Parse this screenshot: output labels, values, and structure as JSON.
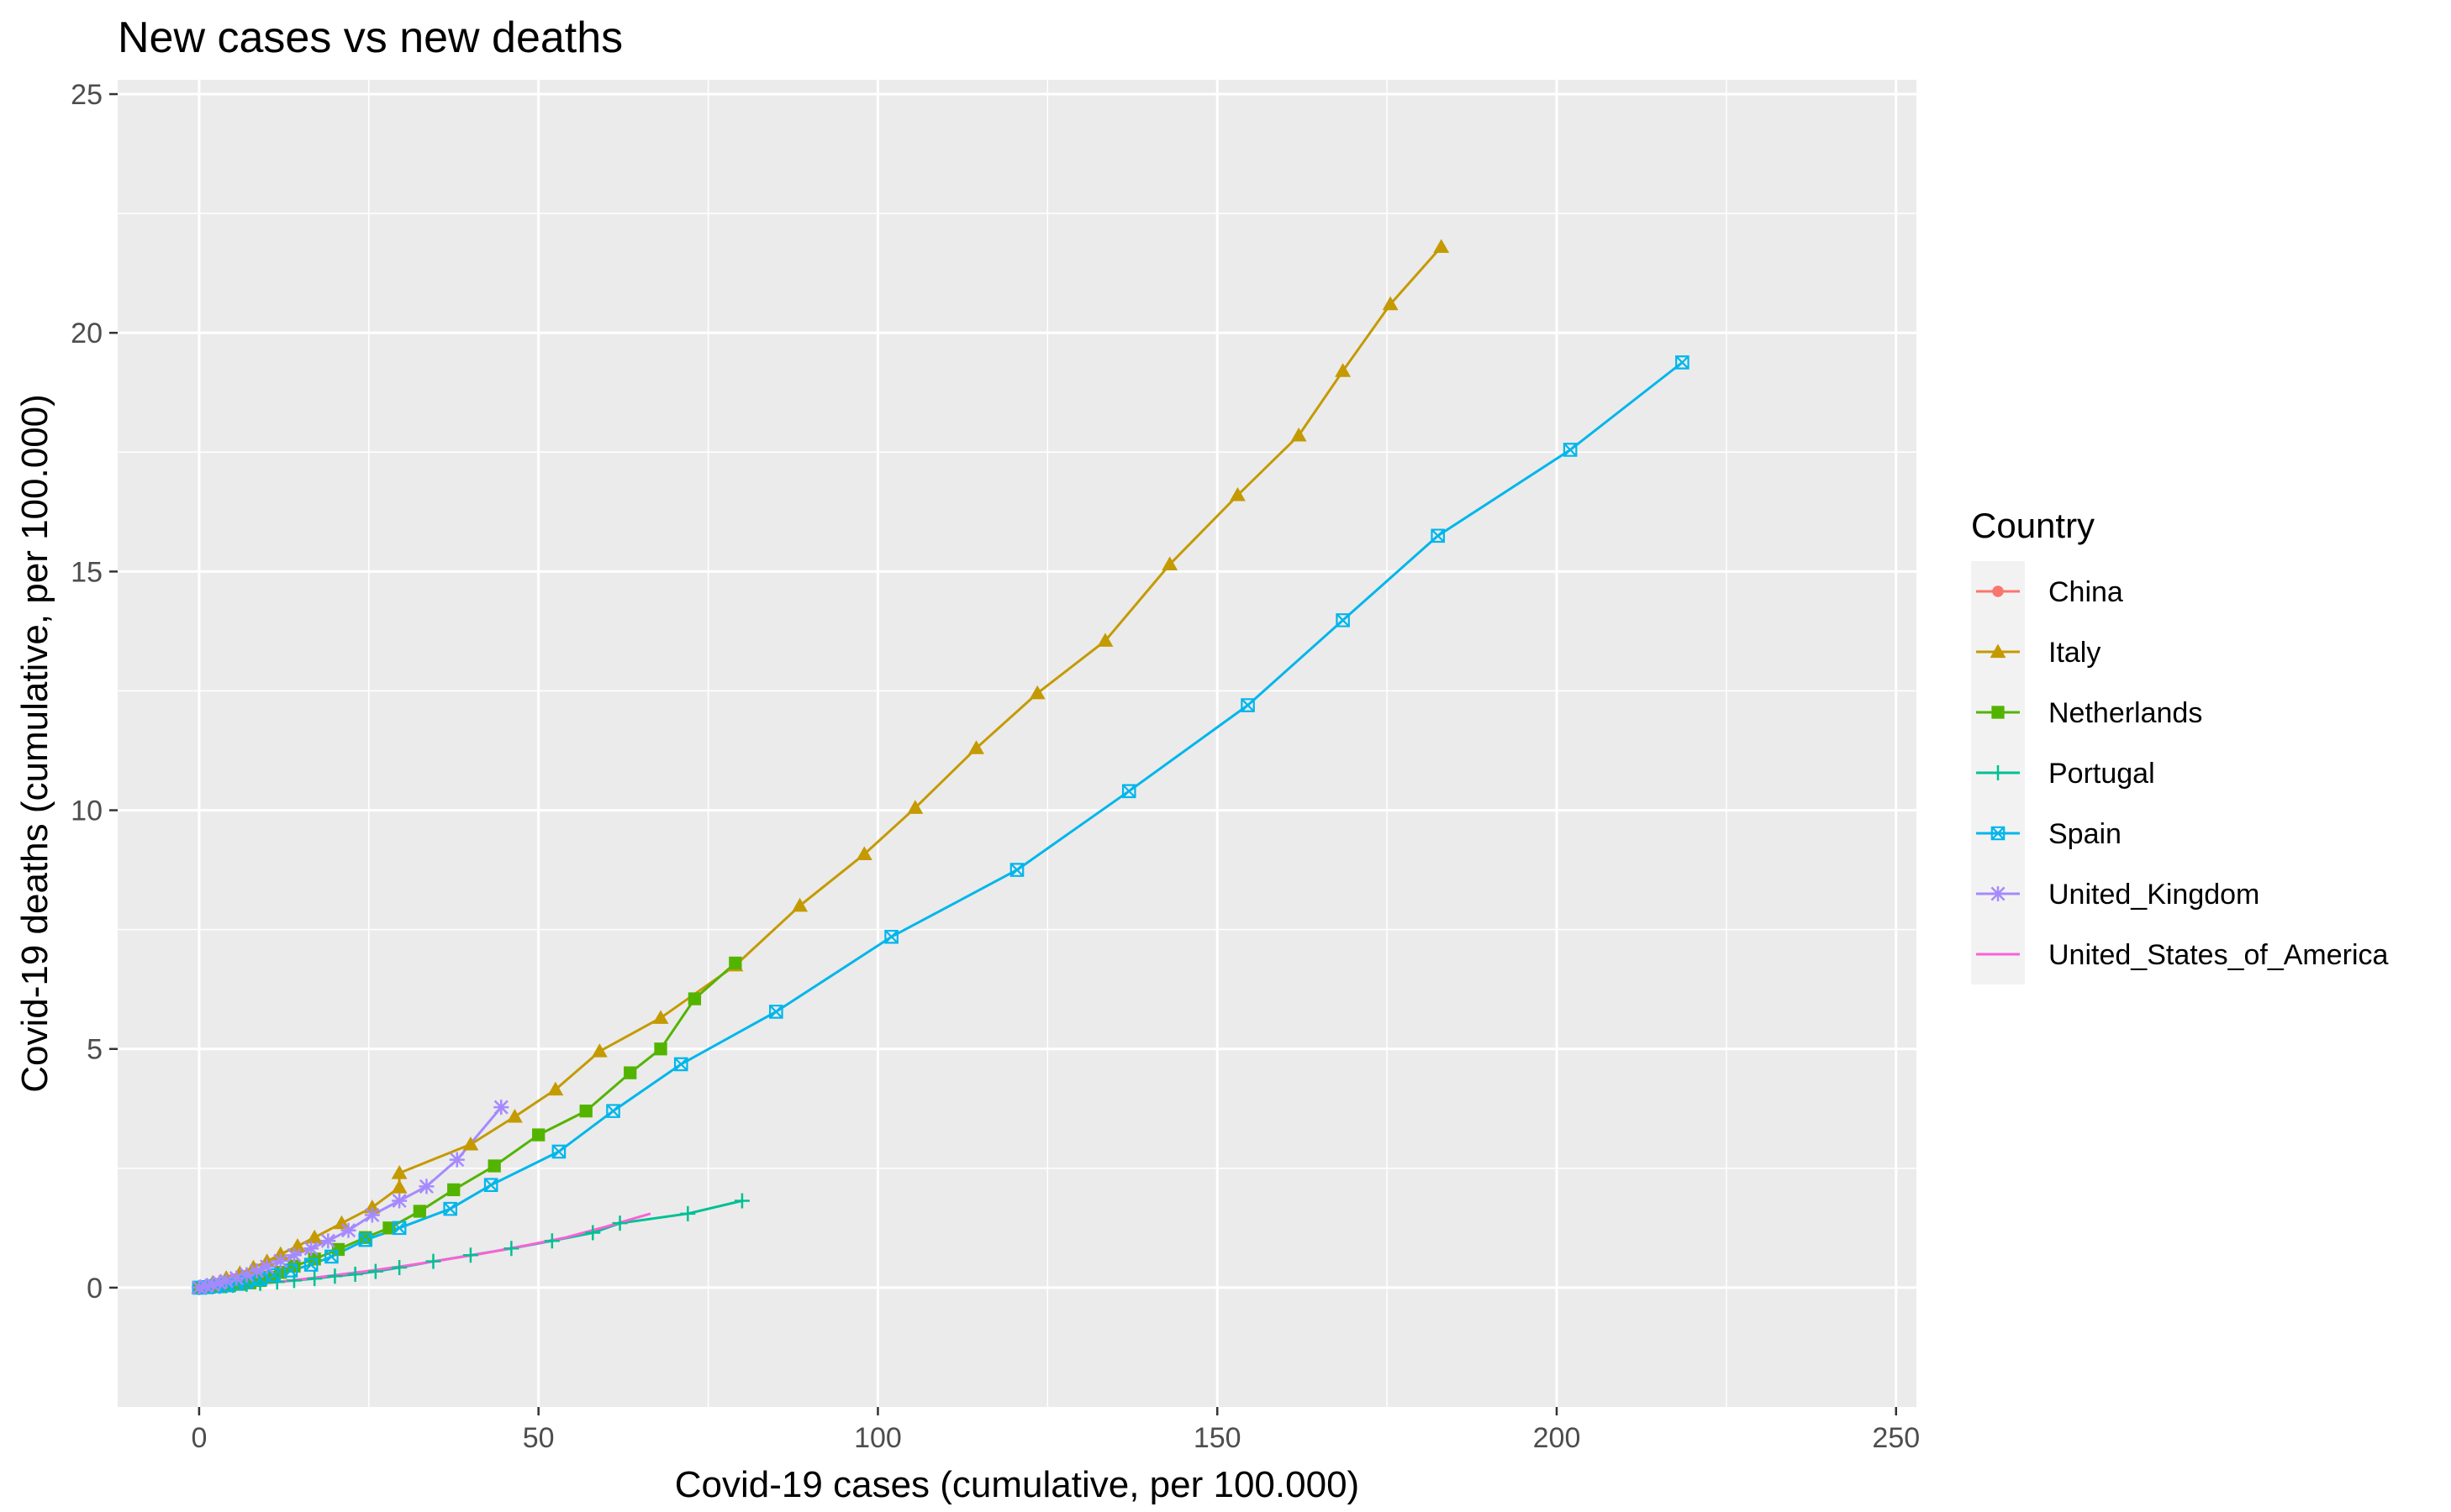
{
  "chart_data": {
    "type": "line",
    "title": "New cases vs new deaths",
    "xlabel": "Covid-19 cases (cumulative, per 100.000)",
    "ylabel": "Covid-19 deaths  (cumulative, per 100.000)",
    "xlim": [
      -12,
      253
    ],
    "ylim": [
      -2.5,
      25.3
    ],
    "x_ticks": [
      0,
      50,
      100,
      150,
      200,
      250
    ],
    "y_ticks": [
      0,
      5,
      10,
      15,
      20,
      25
    ],
    "grid": true,
    "legend_title": "Country",
    "legend_position": "right",
    "series": [
      {
        "name": "China",
        "color": "#F8766D",
        "marker": "circle",
        "x": [
          0.0,
          0.5,
          1.2,
          2.0,
          3.0,
          4.0,
          5.0,
          5.8,
          6.2
        ],
        "y": [
          0.0,
          0.01,
          0.03,
          0.06,
          0.1,
          0.14,
          0.18,
          0.21,
          0.23
        ]
      },
      {
        "name": "Italy",
        "color": "#C49A00",
        "marker": "triangle",
        "x": [
          0,
          2,
          4,
          6,
          8,
          10,
          12,
          14.5,
          17,
          21,
          25.5,
          29.5,
          29.5,
          40,
          46.5,
          52.5,
          59,
          68,
          79,
          88.5,
          98,
          105.5,
          114.5,
          123.5,
          133.5,
          143,
          153,
          162,
          168.5,
          175.5,
          183
        ],
        "y": [
          0,
          0.1,
          0.2,
          0.3,
          0.42,
          0.55,
          0.7,
          0.87,
          1.05,
          1.35,
          1.68,
          2.1,
          2.4,
          3.0,
          3.58,
          4.15,
          4.95,
          5.65,
          6.75,
          8.0,
          9.08,
          10.05,
          11.3,
          12.45,
          13.55,
          15.15,
          16.6,
          17.85,
          19.2,
          20.6,
          21.8
        ]
      },
      {
        "name": "Netherlands",
        "color": "#53B400",
        "marker": "square",
        "x": [
          0,
          1.5,
          3,
          4.5,
          6,
          7.5,
          9,
          10.5,
          12,
          14,
          17,
          20.5,
          24.5,
          28,
          32.5,
          37.5,
          43.5,
          50,
          57,
          63.5,
          68,
          73,
          79
        ],
        "y": [
          0,
          0.01,
          0.02,
          0.04,
          0.07,
          0.1,
          0.15,
          0.22,
          0.32,
          0.45,
          0.6,
          0.8,
          1.05,
          1.25,
          1.6,
          2.05,
          2.55,
          3.2,
          3.7,
          4.5,
          5.0,
          6.05,
          6.8
        ]
      },
      {
        "name": "Portugal",
        "color": "#00C094",
        "marker": "plus",
        "x": [
          0,
          1,
          2,
          3,
          4,
          5,
          7,
          9,
          11.5,
          14,
          17,
          20,
          23,
          26,
          29.5,
          34.5,
          40,
          46,
          52,
          58,
          62,
          72,
          80
        ],
        "y": [
          0,
          0.01,
          0.02,
          0.03,
          0.04,
          0.05,
          0.07,
          0.09,
          0.12,
          0.15,
          0.19,
          0.24,
          0.28,
          0.34,
          0.42,
          0.55,
          0.68,
          0.82,
          0.98,
          1.15,
          1.35,
          1.55,
          1.82
        ]
      },
      {
        "name": "Spain",
        "color": "#00B6EB",
        "marker": "square-x",
        "x": [
          0,
          1,
          2.5,
          4,
          5.5,
          7,
          9,
          11,
          13.5,
          16.5,
          19.5,
          24.5,
          29.5,
          37,
          43,
          53,
          61,
          71,
          85,
          102,
          120.5,
          137,
          154.5,
          168.5,
          182.5,
          202,
          218.5
        ],
        "y": [
          0,
          0.01,
          0.03,
          0.05,
          0.08,
          0.12,
          0.18,
          0.26,
          0.36,
          0.48,
          0.65,
          1.0,
          1.25,
          1.65,
          2.15,
          2.85,
          3.7,
          4.68,
          5.78,
          7.35,
          8.75,
          10.4,
          12.2,
          13.98,
          15.75,
          17.55,
          19.38
        ]
      },
      {
        "name": "United_Kingdom",
        "color": "#A58AFF",
        "marker": "asterisk",
        "x": [
          0,
          1,
          2,
          3,
          4,
          5.5,
          7,
          8.5,
          10,
          12,
          14,
          16.5,
          19,
          22,
          25.5,
          29.5,
          33.5,
          38,
          44.5
        ],
        "y": [
          0,
          0.03,
          0.06,
          0.1,
          0.14,
          0.2,
          0.27,
          0.35,
          0.44,
          0.56,
          0.68,
          0.82,
          0.98,
          1.2,
          1.52,
          1.82,
          2.12,
          2.68,
          3.78
        ]
      },
      {
        "name": "United_States_of_America",
        "color": "#FB61D7",
        "marker": "none",
        "x": [
          0,
          2,
          4,
          6,
          8,
          10,
          13,
          16,
          20,
          25,
          30,
          36,
          42,
          48,
          54,
          60,
          66.5
        ],
        "y": [
          0,
          0.02,
          0.04,
          0.06,
          0.08,
          0.1,
          0.14,
          0.19,
          0.26,
          0.35,
          0.45,
          0.58,
          0.72,
          0.88,
          1.05,
          1.28,
          1.55
        ]
      }
    ]
  }
}
